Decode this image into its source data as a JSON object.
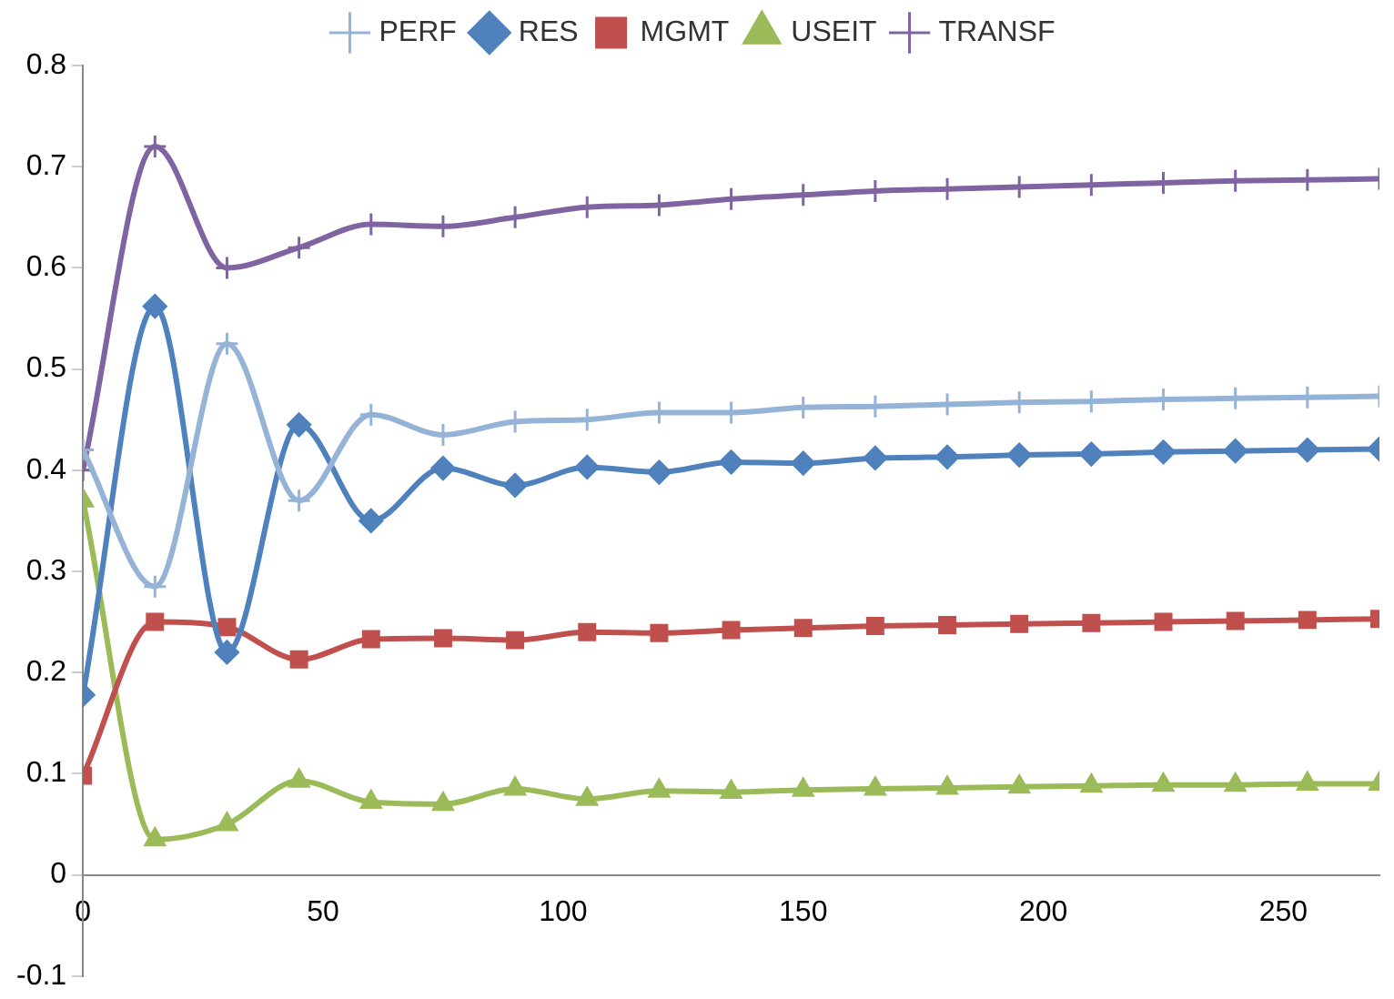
{
  "chart_data": {
    "type": "line",
    "x": [
      0,
      15,
      30,
      45,
      60,
      75,
      90,
      105,
      120,
      135,
      150,
      165,
      180,
      195,
      210,
      225,
      240,
      255,
      270
    ],
    "xlim": [
      0,
      270
    ],
    "xticks": [
      0,
      50,
      100,
      150,
      200,
      250
    ],
    "ylim": [
      -0.1,
      0.8
    ],
    "yticks": [
      -0.1,
      0,
      0.1,
      0.2,
      0.3,
      0.4,
      0.5,
      0.6,
      0.7,
      0.8
    ],
    "grid": false,
    "legend": "top",
    "line_style": "solid",
    "series": [
      {
        "name": "PERF",
        "color": "#95b3d7",
        "marker": "cross",
        "values": [
          0.42,
          0.285,
          0.525,
          0.37,
          0.455,
          0.435,
          0.448,
          0.45,
          0.457,
          0.457,
          0.462,
          0.463,
          0.465,
          0.467,
          0.468,
          0.47,
          0.471,
          0.472,
          0.473
        ]
      },
      {
        "name": "RES",
        "color": "#4f81bd",
        "marker": "diamond",
        "values": [
          0.178,
          0.562,
          0.22,
          0.445,
          0.35,
          0.402,
          0.385,
          0.403,
          0.398,
          0.408,
          0.407,
          0.412,
          0.413,
          0.415,
          0.416,
          0.418,
          0.419,
          0.42,
          0.421
        ]
      },
      {
        "name": "MGMT",
        "color": "#c0504d",
        "marker": "square",
        "values": [
          0.098,
          0.25,
          0.245,
          0.213,
          0.233,
          0.234,
          0.232,
          0.24,
          0.239,
          0.242,
          0.244,
          0.246,
          0.247,
          0.248,
          0.249,
          0.25,
          0.251,
          0.252,
          0.253
        ]
      },
      {
        "name": "USEIT",
        "color": "#9bbb59",
        "marker": "triangle",
        "values": [
          0.37,
          0.035,
          0.05,
          0.093,
          0.072,
          0.07,
          0.085,
          0.075,
          0.083,
          0.082,
          0.084,
          0.085,
          0.086,
          0.087,
          0.088,
          0.089,
          0.089,
          0.09,
          0.09
        ]
      },
      {
        "name": "TRANSF",
        "color": "#8064a2",
        "marker": "cross",
        "values": [
          0.4,
          0.72,
          0.6,
          0.62,
          0.643,
          0.641,
          0.65,
          0.66,
          0.662,
          0.668,
          0.672,
          0.676,
          0.678,
          0.68,
          0.682,
          0.684,
          0.686,
          0.687,
          0.688
        ]
      }
    ]
  }
}
